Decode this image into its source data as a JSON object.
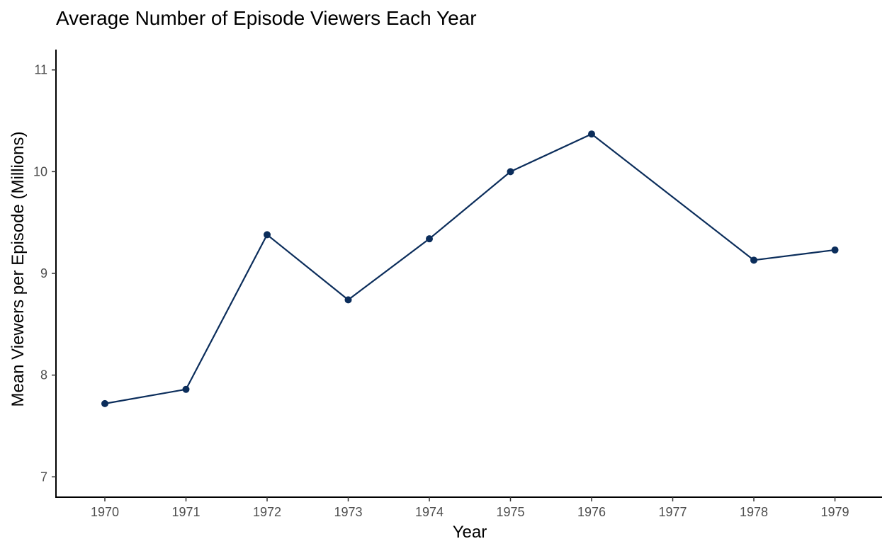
{
  "chart_data": {
    "type": "line",
    "title": "Average Number of Episode Viewers Each Year",
    "xlabel": "Year",
    "ylabel": "Mean Viewers per Episode (Millions)",
    "x": [
      "1970",
      "1971",
      "1972",
      "1973",
      "1974",
      "1975",
      "1976",
      "1977",
      "1978",
      "1979"
    ],
    "x_ticks": [
      "1970",
      "1971",
      "1972",
      "1973",
      "1974",
      "1975",
      "1976",
      "1977",
      "1978",
      "1979"
    ],
    "y_ticks": [
      7,
      8,
      9,
      10,
      11
    ],
    "ylim": [
      6.8,
      11.2
    ],
    "grid": false,
    "series": [
      {
        "color": "#0b2d5b",
        "points": [
          {
            "x": "1970",
            "y": 7.72
          },
          {
            "x": "1971",
            "y": 7.86
          },
          {
            "x": "1972",
            "y": 9.38
          },
          {
            "x": "1973",
            "y": 8.74
          },
          {
            "x": "1974",
            "y": 9.34
          },
          {
            "x": "1975",
            "y": 10.0
          },
          {
            "x": "1976",
            "y": 10.37
          },
          {
            "x": "1978",
            "y": 9.13
          },
          {
            "x": "1979",
            "y": 9.23
          }
        ]
      }
    ]
  }
}
